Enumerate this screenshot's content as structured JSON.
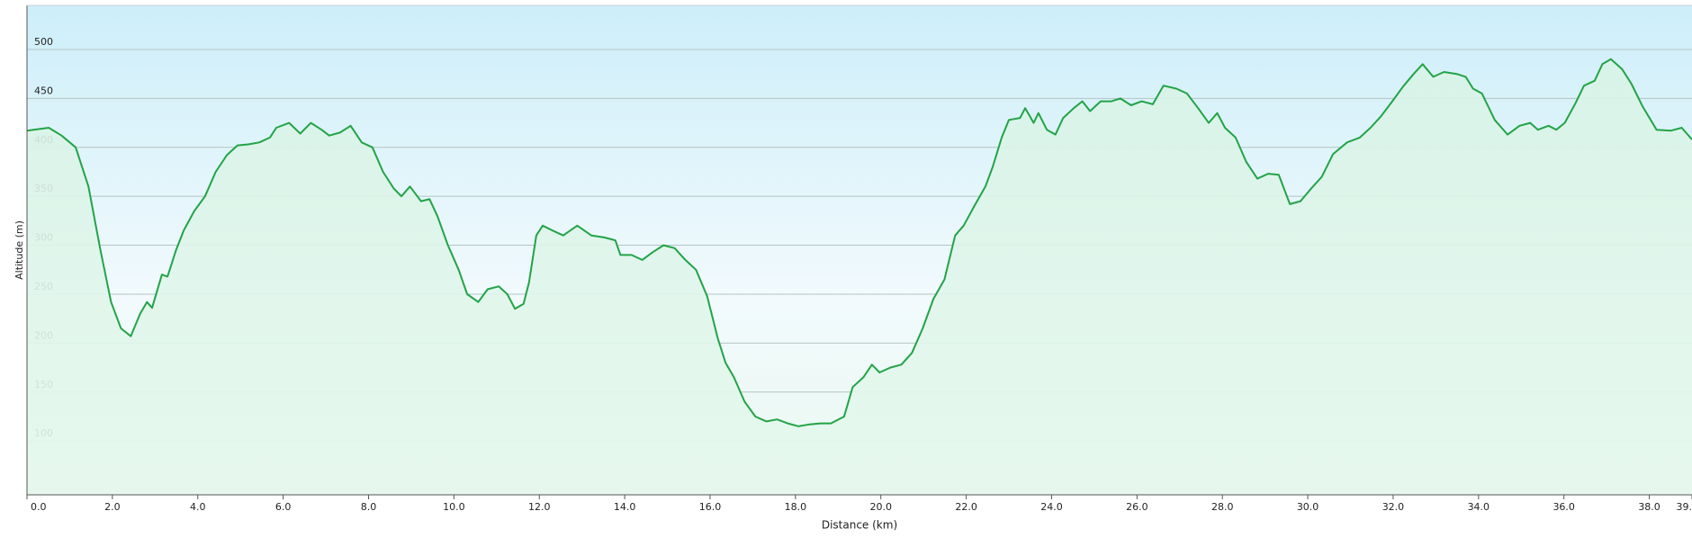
{
  "chart_data": {
    "type": "area",
    "xlabel": "Distance  (km)",
    "ylabel": "Altitude (m)",
    "x": [
      0,
      0.51,
      0.81,
      1.14,
      1.44,
      1.72,
      1.97,
      2.2,
      2.43,
      2.65,
      2.81,
      2.93,
      3.16,
      3.29,
      3.49,
      3.67,
      3.92,
      4.17,
      4.42,
      4.68,
      4.93,
      5.18,
      5.44,
      5.69,
      5.84,
      6.14,
      6.4,
      6.65,
      6.9,
      7.08,
      7.33,
      7.58,
      7.84,
      8.09,
      8.34,
      8.59,
      8.77,
      8.97,
      9.23,
      9.43,
      9.61,
      9.86,
      10.11,
      10.31,
      10.57,
      10.79,
      11.05,
      11.25,
      11.43,
      11.63,
      11.76,
      11.93,
      12.08,
      12.31,
      12.56,
      12.89,
      13.22,
      13.52,
      13.78,
      13.9,
      14.16,
      14.41,
      14.66,
      14.91,
      15.17,
      15.42,
      15.67,
      15.93,
      16.18,
      16.36,
      16.56,
      16.81,
      17.06,
      17.32,
      17.57,
      17.82,
      18.07,
      18.33,
      18.58,
      18.83,
      19.14,
      19.34,
      19.59,
      19.79,
      19.97,
      20.22,
      20.48,
      20.73,
      20.98,
      21.23,
      21.49,
      21.74,
      21.94,
      22.19,
      22.45,
      22.62,
      22.83,
      23.0,
      23.26,
      23.38,
      23.58,
      23.69,
      23.89,
      24.09,
      24.27,
      24.52,
      24.72,
      24.9,
      25.15,
      25.4,
      25.61,
      25.86,
      26.11,
      26.37,
      26.62,
      26.92,
      27.17,
      27.43,
      27.68,
      27.88,
      28.06,
      28.31,
      28.56,
      28.82,
      29.07,
      29.32,
      29.58,
      29.83,
      30.08,
      30.33,
      30.59,
      30.92,
      31.22,
      31.47,
      31.72,
      31.98,
      32.23,
      32.48,
      32.69,
      32.94,
      33.19,
      33.49,
      33.7,
      33.87,
      34.08,
      34.38,
      34.68,
      34.96,
      35.21,
      35.39,
      35.64,
      35.82,
      36.02,
      36.27,
      36.47,
      36.72,
      36.9,
      37.1,
      37.36,
      37.58,
      37.84,
      38.17,
      38.5,
      38.76,
      39.0
    ],
    "series": [
      {
        "color": "#23a347",
        "values": [
          417,
          420,
          412,
          400,
          360,
          295,
          242,
          215,
          207,
          230,
          242,
          236,
          270,
          268,
          295,
          315,
          335,
          350,
          375,
          392,
          402,
          403,
          405,
          410,
          420,
          425,
          414,
          425,
          418,
          412,
          415,
          422,
          405,
          400,
          375,
          358,
          350,
          360,
          345,
          347,
          330,
          300,
          275,
          250,
          242,
          255,
          258,
          250,
          235,
          240,
          262,
          310,
          320,
          315,
          310,
          320,
          310,
          308,
          305,
          290,
          290,
          285,
          293,
          300,
          297,
          285,
          275,
          248,
          205,
          180,
          165,
          140,
          125,
          120,
          122,
          118,
          115,
          117,
          118,
          118,
          125,
          155,
          165,
          178,
          170,
          175,
          178,
          190,
          215,
          245,
          265,
          310,
          320,
          340,
          360,
          380,
          410,
          428,
          430,
          440,
          425,
          435,
          418,
          413,
          430,
          440,
          447,
          437,
          447,
          447,
          450,
          443,
          447,
          444,
          463,
          460,
          455,
          440,
          425,
          435,
          420,
          410,
          385,
          368,
          373,
          372,
          342,
          345,
          358,
          370,
          393,
          405,
          410,
          420,
          432,
          447,
          462,
          475,
          485,
          472,
          477,
          475,
          472,
          460,
          455,
          428,
          413,
          422,
          425,
          418,
          422,
          418,
          425,
          445,
          463,
          468,
          485,
          490,
          480,
          465,
          442,
          418,
          417,
          420,
          408
        ]
      }
    ],
    "xlim": [
      0,
      39.0
    ],
    "ylim": [
      45,
      545
    ],
    "xticks": [
      {
        "value": 0,
        "label": "0.0"
      },
      {
        "value": 2,
        "label": "2.0"
      },
      {
        "value": 4,
        "label": "4.0"
      },
      {
        "value": 6,
        "label": "6.0"
      },
      {
        "value": 8,
        "label": "8.0"
      },
      {
        "value": 10,
        "label": "10.0"
      },
      {
        "value": 12,
        "label": "12.0"
      },
      {
        "value": 14,
        "label": "14.0"
      },
      {
        "value": 16,
        "label": "16.0"
      },
      {
        "value": 18,
        "label": "18.0"
      },
      {
        "value": 20,
        "label": "20.0"
      },
      {
        "value": 22,
        "label": "22.0"
      },
      {
        "value": 24,
        "label": "24.0"
      },
      {
        "value": 26,
        "label": "26.0"
      },
      {
        "value": 28,
        "label": "28.0"
      },
      {
        "value": 30,
        "label": "30.0"
      },
      {
        "value": 32,
        "label": "32.0"
      },
      {
        "value": 34,
        "label": "34.0"
      },
      {
        "value": 36,
        "label": "36.0"
      },
      {
        "value": 38,
        "label": "38.0"
      },
      {
        "value": 39,
        "label": "39."
      }
    ],
    "yticks": [
      100,
      150,
      200,
      250,
      300,
      350,
      400,
      450,
      500
    ],
    "grid": true
  }
}
